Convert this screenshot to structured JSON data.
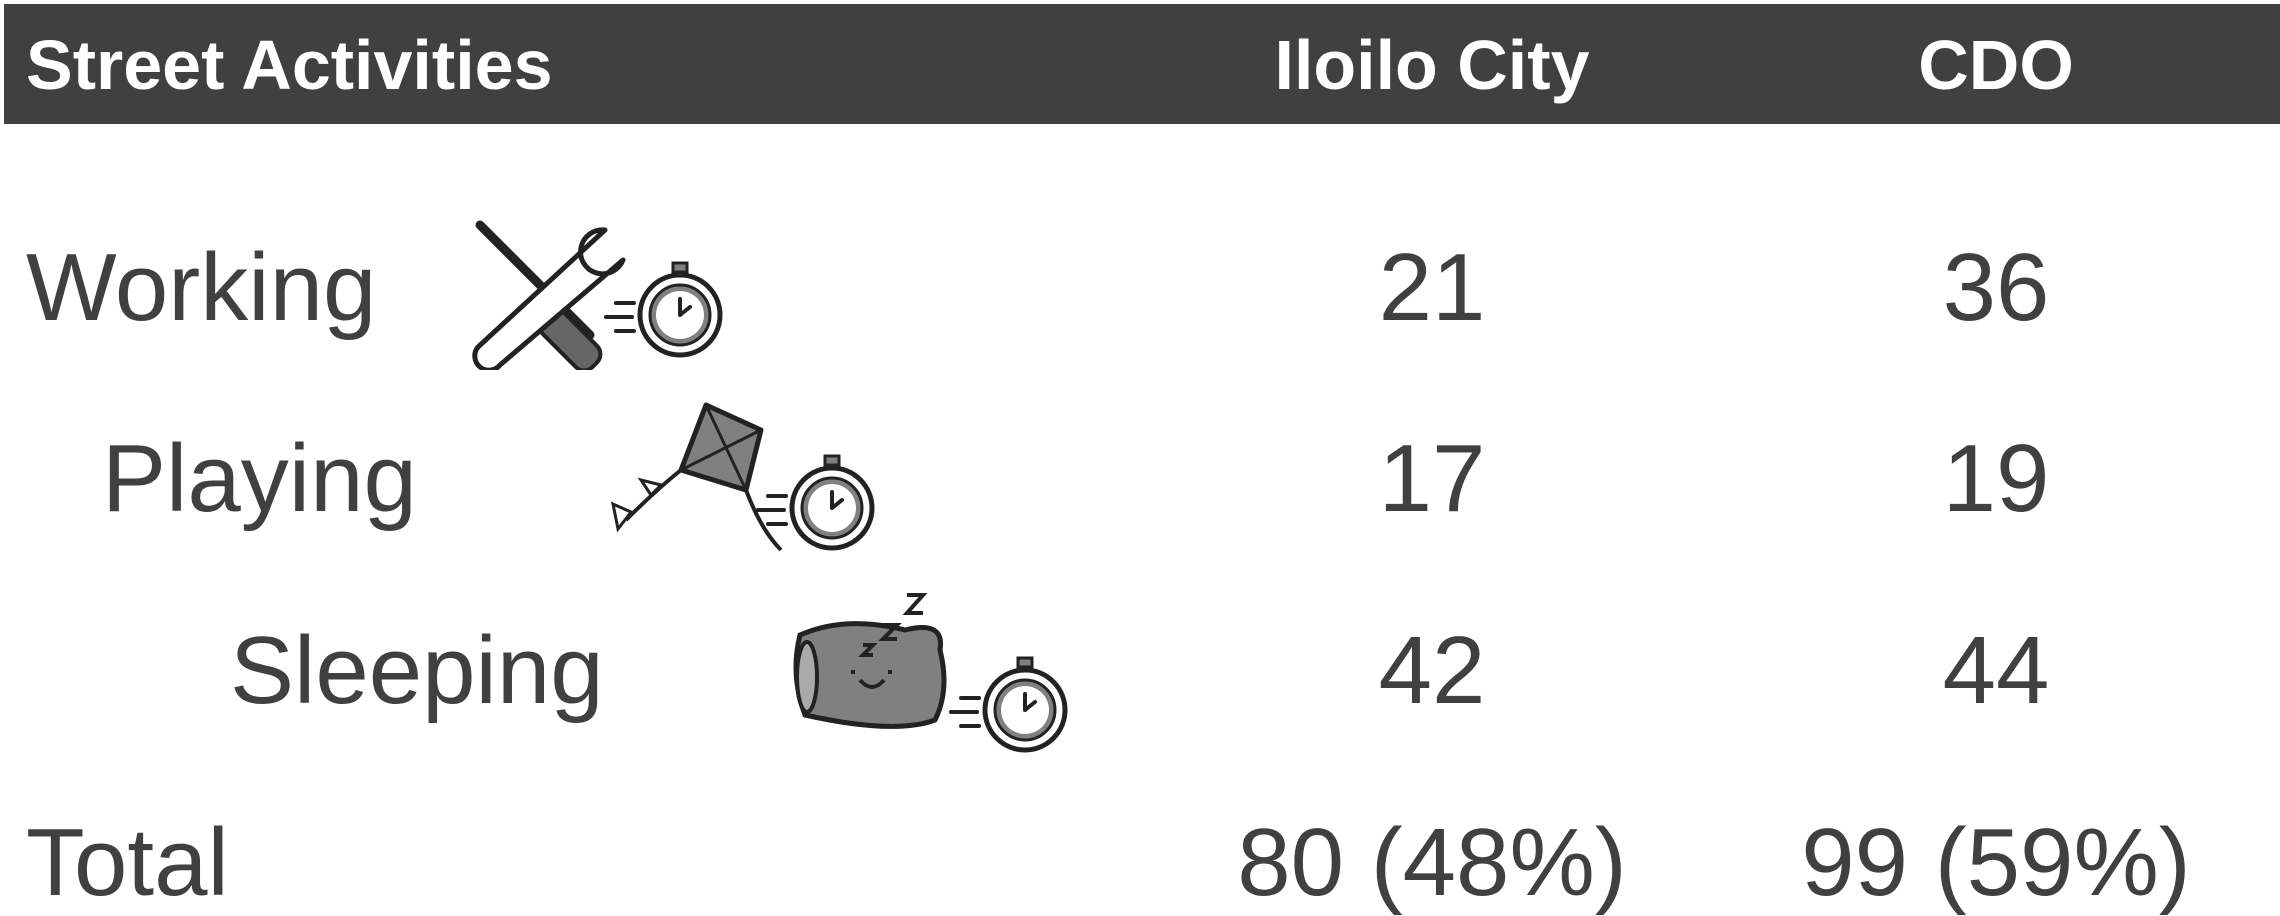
{
  "table": {
    "header": [
      "Street Activities",
      "Iloilo City",
      "CDO"
    ],
    "rows": [
      [
        "Working",
        "21",
        "36"
      ],
      [
        "Playing",
        "17",
        "19"
      ],
      [
        "Sleeping",
        "42",
        "44"
      ],
      [
        "Total",
        "80 (48%)",
        "99 (59%)"
      ]
    ]
  }
}
